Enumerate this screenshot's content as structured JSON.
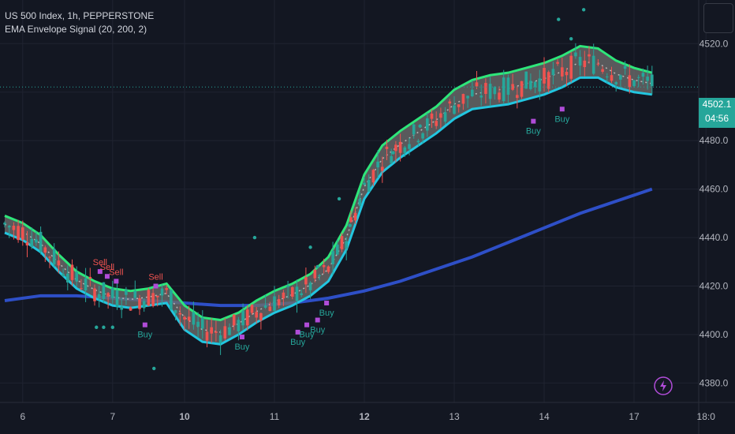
{
  "legend": {
    "title": "US 500 Index, 1h, PEPPERSTONE",
    "indicator": "EMA Envelope Signal (20, 200, 2)"
  },
  "price_tag": {
    "price": "4502.1",
    "countdown": "04:56"
  },
  "colors": {
    "background": "#131722",
    "grid": "#1f2330",
    "up_candle": "#26a69a",
    "down_candle": "#ef5350",
    "envelope_upper": "#2ee67a",
    "envelope_lower": "#22c6e0",
    "envelope_fill": "#6b6b6b",
    "ema200": "#2e4fc7",
    "buy": "#26a69a",
    "sell": "#ef5350",
    "marker": "#b04cd8"
  },
  "chart_data": {
    "type": "line",
    "ylim": [
      4372,
      4538
    ],
    "y_ticks": [
      4380,
      4400,
      4420,
      4440,
      4460,
      4480,
      4500,
      4520
    ],
    "x_ticks": [
      {
        "label": "6",
        "x": 1
      },
      {
        "label": "7",
        "x": 6
      },
      {
        "label": "10",
        "x": 10
      },
      {
        "label": "11",
        "x": 15
      },
      {
        "label": "12",
        "x": 20
      },
      {
        "label": "13",
        "x": 25
      },
      {
        "label": "14",
        "x": 30
      },
      {
        "label": "17",
        "x": 35
      },
      {
        "label": "18:0",
        "x": 39
      }
    ],
    "series": [
      {
        "role": "envelope-upper",
        "x": [
          0,
          1,
          2,
          3,
          4,
          5,
          6,
          7,
          8,
          9,
          10,
          11,
          12,
          13,
          14,
          15,
          16,
          17,
          18,
          19,
          20,
          21,
          22,
          23,
          24,
          25,
          26,
          27,
          28,
          29,
          30,
          31,
          32,
          33,
          34,
          35,
          36
        ],
        "y": [
          4449,
          4446,
          4441,
          4433,
          4426,
          4422,
          4419,
          4418,
          4419,
          4421,
          4412,
          4407,
          4406,
          4409,
          4414,
          4418,
          4421,
          4425,
          4432,
          4445,
          4466,
          4478,
          4484,
          4489,
          4494,
          4501,
          4505,
          4507,
          4508,
          4510,
          4512,
          4515,
          4519,
          4518,
          4513,
          4510,
          4508
        ]
      },
      {
        "role": "envelope-lower",
        "x": [
          0,
          1,
          2,
          3,
          4,
          5,
          6,
          7,
          8,
          9,
          10,
          11,
          12,
          13,
          14,
          15,
          16,
          17,
          18,
          19,
          20,
          21,
          22,
          23,
          24,
          25,
          26,
          27,
          28,
          29,
          30,
          31,
          32,
          33,
          34,
          35,
          36
        ],
        "y": [
          4442,
          4439,
          4434,
          4426,
          4419,
          4415,
          4412,
          4411,
          4412,
          4413,
          4402,
          4397,
          4396,
          4400,
          4405,
          4409,
          4412,
          4416,
          4422,
          4435,
          4456,
          4467,
          4473,
          4478,
          4483,
          4489,
          4493,
          4494,
          4495,
          4497,
          4499,
          4502,
          4506,
          4506,
          4502,
          4500,
          4499
        ]
      },
      {
        "role": "ema-200",
        "x": [
          0,
          2,
          4,
          6,
          8,
          10,
          12,
          14,
          16,
          18,
          20,
          22,
          24,
          26,
          28,
          30,
          32,
          34,
          36
        ],
        "y": [
          4414,
          4416,
          4416,
          4415,
          4414,
          4413,
          4412,
          4412,
          4413,
          4415,
          4418,
          4422,
          4427,
          4432,
          4438,
          4444,
          4450,
          4455,
          4460
        ]
      }
    ],
    "price_line": 4502.1,
    "signals": [
      {
        "label": "Sell",
        "x": 5.3,
        "y": 4426
      },
      {
        "label": "Sell",
        "x": 5.7,
        "y": 4424
      },
      {
        "label": "Sell",
        "x": 6.2,
        "y": 4422
      },
      {
        "label": "Sell",
        "x": 8.4,
        "y": 4420
      },
      {
        "label": "Buy",
        "x": 7.8,
        "y": 4404
      },
      {
        "label": "Buy",
        "x": 13.2,
        "y": 4399
      },
      {
        "label": "Buy",
        "x": 16.3,
        "y": 4401
      },
      {
        "label": "Buy",
        "x": 16.8,
        "y": 4404
      },
      {
        "label": "Buy",
        "x": 17.4,
        "y": 4406
      },
      {
        "label": "Buy",
        "x": 17.9,
        "y": 4413
      },
      {
        "label": "Buy",
        "x": 29.4,
        "y": 4488
      },
      {
        "label": "Buy",
        "x": 31.0,
        "y": 4493
      }
    ]
  }
}
